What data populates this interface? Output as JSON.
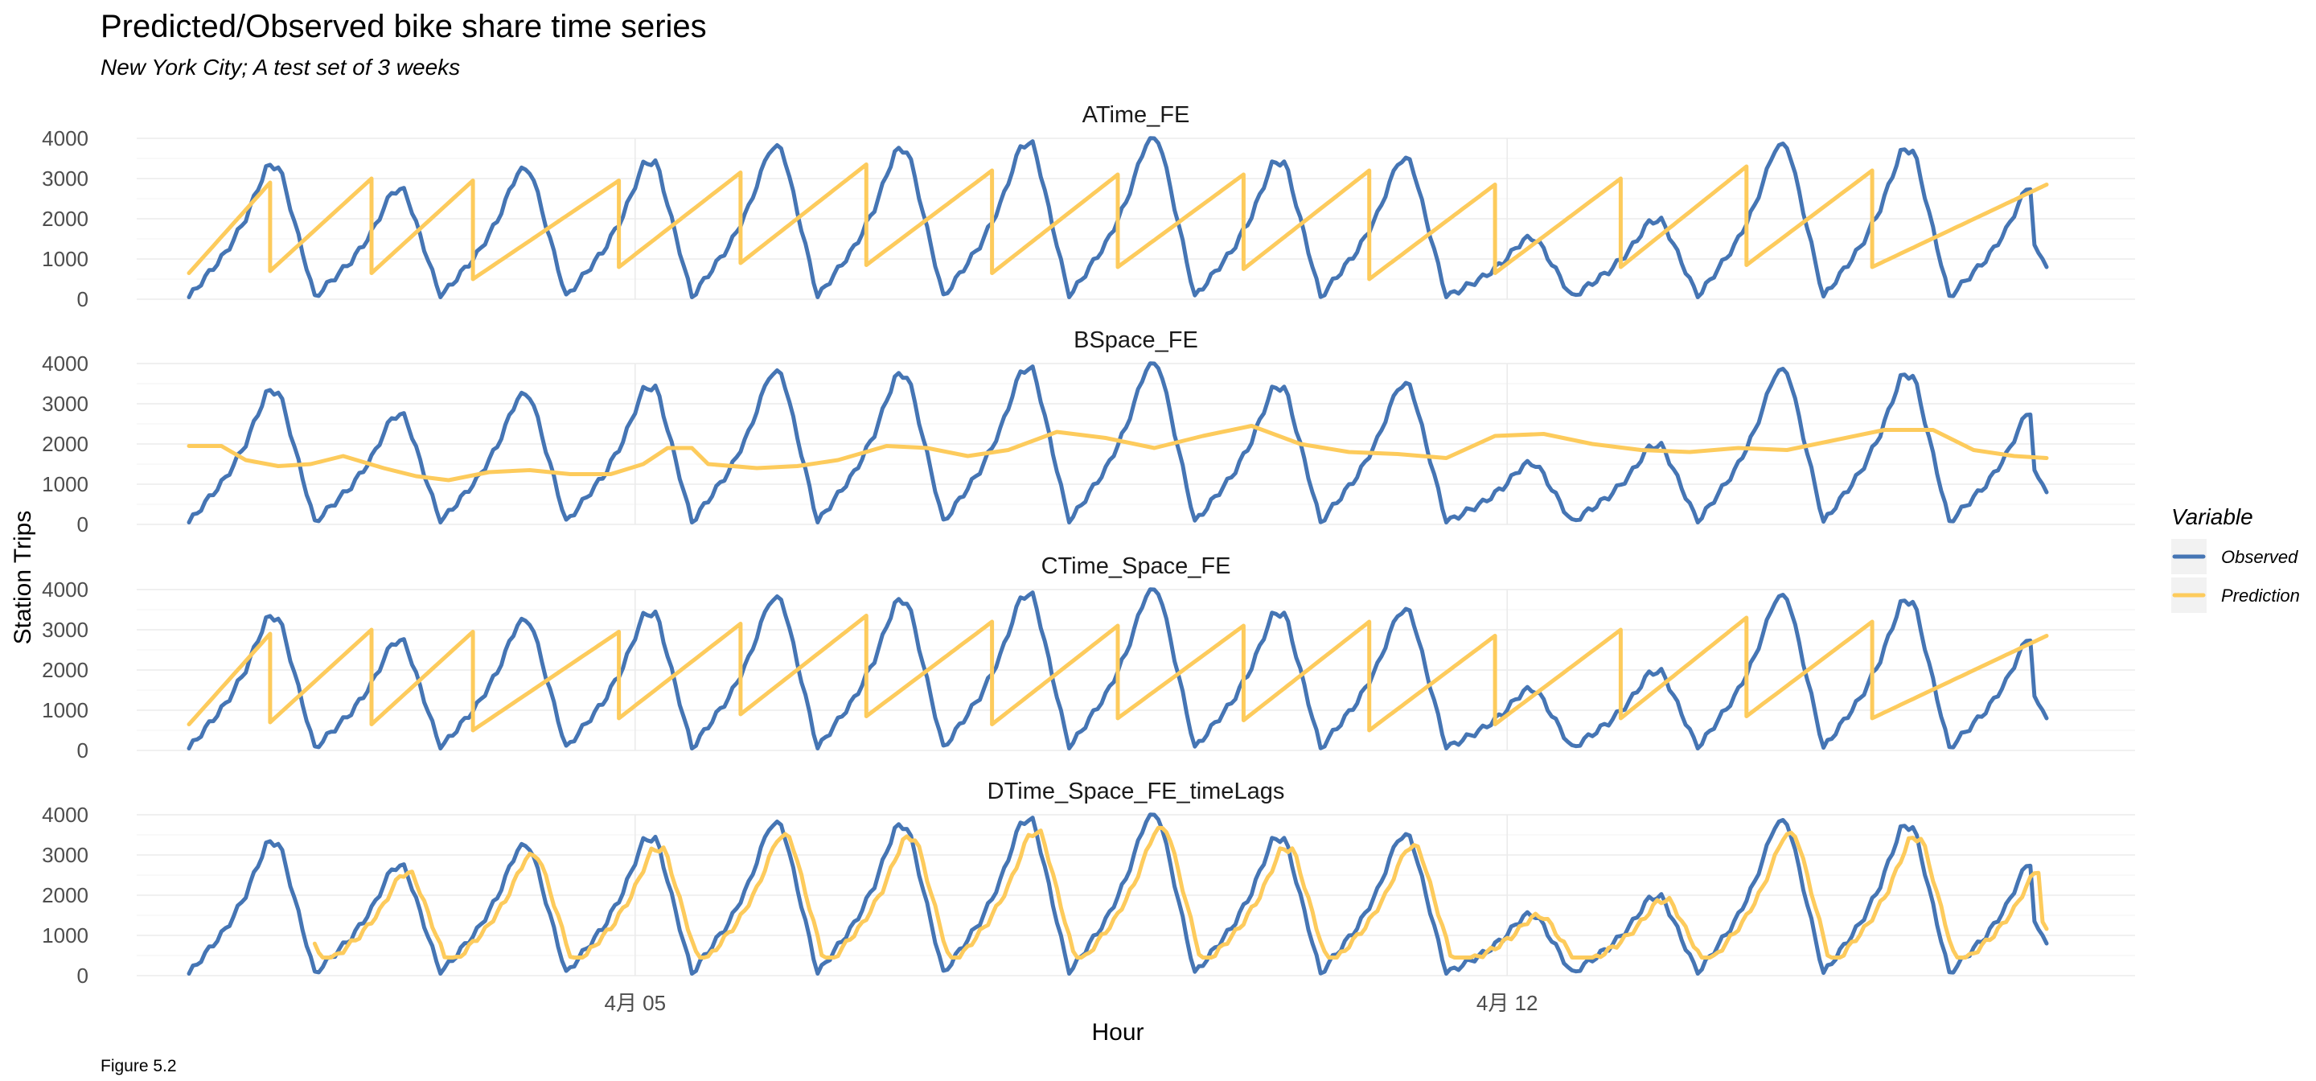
{
  "caption": "Figure 5.2",
  "chart_data": {
    "type": "line",
    "title": "Predicted/Observed bike share time series",
    "subtitle": "New York City; A test set of 3 weeks",
    "xlabel": "Hour",
    "ylabel": "Station Trips",
    "x_unit": "hour",
    "x_range_hours": [
      0,
      458
    ],
    "x_ticks": [
      {
        "label": "4月 05",
        "hour": 110
      },
      {
        "label": "4月 12",
        "hour": 325
      }
    ],
    "ylim": [
      0,
      4000
    ],
    "y_ticks": [
      0,
      1000,
      2000,
      3000,
      4000
    ],
    "grid": true,
    "legend": {
      "title": "Variable",
      "position": "right",
      "items": [
        {
          "name": "Observed",
          "color": "#4575b4"
        },
        {
          "name": "Prediction",
          "color": "#fdcb5c"
        }
      ]
    },
    "observed_day_profile": {
      "description_hours_to_values": "observed trips per day approximated by a daily cycle",
      "daily_peaks": [
        3300,
        2700,
        3200,
        3400,
        3750,
        3700,
        3850,
        3950,
        3400,
        3450,
        1500,
        1950,
        3800,
        3700,
        2800
      ],
      "night_minimum": 50
    },
    "facets": [
      {
        "name": "ATime_FE",
        "prediction_mode": "sawtooth",
        "prediction_segments": [
          {
            "start_hour": 0,
            "end_hour": 20,
            "from": 650,
            "to": 2900
          },
          {
            "start_hour": 20,
            "end_hour": 45,
            "from": 700,
            "to": 3000
          },
          {
            "start_hour": 45,
            "end_hour": 70,
            "from": 650,
            "to": 2950
          },
          {
            "start_hour": 70,
            "end_hour": 106,
            "from": 500,
            "to": 2950
          },
          {
            "start_hour": 106,
            "end_hour": 136,
            "from": 800,
            "to": 3150
          },
          {
            "start_hour": 136,
            "end_hour": 167,
            "from": 900,
            "to": 3350
          },
          {
            "start_hour": 167,
            "end_hour": 198,
            "from": 850,
            "to": 3200
          },
          {
            "start_hour": 198,
            "end_hour": 229,
            "from": 650,
            "to": 3100
          },
          {
            "start_hour": 229,
            "end_hour": 260,
            "from": 800,
            "to": 3100
          },
          {
            "start_hour": 260,
            "end_hour": 291,
            "from": 750,
            "to": 3200
          },
          {
            "start_hour": 291,
            "end_hour": 322,
            "from": 500,
            "to": 2850
          },
          {
            "start_hour": 322,
            "end_hour": 353,
            "from": 650,
            "to": 3000
          },
          {
            "start_hour": 353,
            "end_hour": 384,
            "from": 800,
            "to": 3300
          },
          {
            "start_hour": 384,
            "end_hour": 415,
            "from": 850,
            "to": 3200
          },
          {
            "start_hour": 415,
            "end_hour": 458,
            "from": 800,
            "to": 2850
          }
        ]
      },
      {
        "name": "BSpace_FE",
        "prediction_mode": "smooth",
        "prediction_points": [
          [
            0,
            1950
          ],
          [
            8,
            1950
          ],
          [
            14,
            1600
          ],
          [
            22,
            1450
          ],
          [
            30,
            1500
          ],
          [
            38,
            1700
          ],
          [
            48,
            1400
          ],
          [
            56,
            1200
          ],
          [
            64,
            1100
          ],
          [
            74,
            1300
          ],
          [
            84,
            1350
          ],
          [
            94,
            1250
          ],
          [
            104,
            1250
          ],
          [
            112,
            1500
          ],
          [
            118,
            1900
          ],
          [
            124,
            1900
          ],
          [
            128,
            1500
          ],
          [
            140,
            1400
          ],
          [
            150,
            1450
          ],
          [
            160,
            1600
          ],
          [
            172,
            1950
          ],
          [
            182,
            1900
          ],
          [
            192,
            1700
          ],
          [
            202,
            1850
          ],
          [
            214,
            2300
          ],
          [
            226,
            2150
          ],
          [
            238,
            1900
          ],
          [
            250,
            2200
          ],
          [
            262,
            2450
          ],
          [
            274,
            2000
          ],
          [
            286,
            1800
          ],
          [
            298,
            1750
          ],
          [
            310,
            1650
          ],
          [
            322,
            2200
          ],
          [
            334,
            2250
          ],
          [
            346,
            2000
          ],
          [
            358,
            1850
          ],
          [
            370,
            1800
          ],
          [
            382,
            1900
          ],
          [
            394,
            1850
          ],
          [
            406,
            2100
          ],
          [
            418,
            2350
          ],
          [
            430,
            2350
          ],
          [
            440,
            1850
          ],
          [
            450,
            1700
          ],
          [
            458,
            1650
          ]
        ]
      },
      {
        "name": "CTime_Space_FE",
        "prediction_mode": "sawtooth",
        "prediction_segments": [
          {
            "start_hour": 0,
            "end_hour": 20,
            "from": 650,
            "to": 2900
          },
          {
            "start_hour": 20,
            "end_hour": 45,
            "from": 700,
            "to": 3000
          },
          {
            "start_hour": 45,
            "end_hour": 70,
            "from": 650,
            "to": 2950
          },
          {
            "start_hour": 70,
            "end_hour": 106,
            "from": 500,
            "to": 2950
          },
          {
            "start_hour": 106,
            "end_hour": 136,
            "from": 800,
            "to": 3150
          },
          {
            "start_hour": 136,
            "end_hour": 167,
            "from": 900,
            "to": 3350
          },
          {
            "start_hour": 167,
            "end_hour": 198,
            "from": 850,
            "to": 3200
          },
          {
            "start_hour": 198,
            "end_hour": 229,
            "from": 650,
            "to": 3100
          },
          {
            "start_hour": 229,
            "end_hour": 260,
            "from": 800,
            "to": 3100
          },
          {
            "start_hour": 260,
            "end_hour": 291,
            "from": 750,
            "to": 3200
          },
          {
            "start_hour": 291,
            "end_hour": 322,
            "from": 500,
            "to": 2850
          },
          {
            "start_hour": 322,
            "end_hour": 353,
            "from": 650,
            "to": 3000
          },
          {
            "start_hour": 353,
            "end_hour": 384,
            "from": 800,
            "to": 3300
          },
          {
            "start_hour": 384,
            "end_hour": 415,
            "from": 850,
            "to": 3200
          },
          {
            "start_hour": 415,
            "end_hour": 458,
            "from": 800,
            "to": 2850
          }
        ]
      },
      {
        "name": "DTime_Space_FE_timeLags",
        "prediction_mode": "lagged",
        "prediction_start_hour": 31,
        "prediction_lag_hours": 2,
        "prediction_scale": 0.88,
        "prediction_floor": 450
      }
    ]
  }
}
